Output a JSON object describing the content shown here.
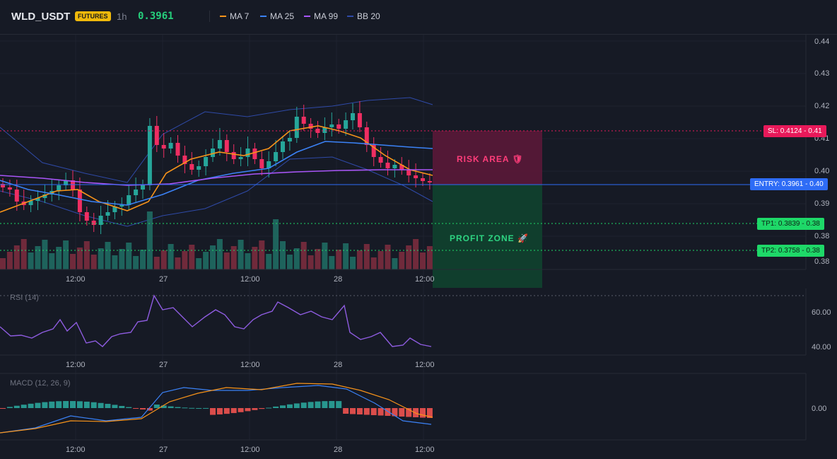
{
  "header": {
    "symbol": "WLD_USDT",
    "badge": "FUTURES",
    "timeframe": "1h",
    "price": "0.3961",
    "legend": [
      {
        "label": "MA 7",
        "color": "#f7931a"
      },
      {
        "label": "MA 25",
        "color": "#3b82f6"
      },
      {
        "label": "MA 99",
        "color": "#a855f7"
      },
      {
        "label": "BB 20",
        "color": "#2f4aa8"
      }
    ]
  },
  "price_axis": [
    "0.44",
    "0.43",
    "0.42",
    "0.41",
    "0.40",
    "0.39",
    "0.38",
    "0.38"
  ],
  "price_labels": {
    "sl": "SL: 0.4124 - 0.41",
    "entry": "ENTRY: 0.3961 - 0.40",
    "tp1": "TP1: 0.3839 - 0.38",
    "tp2": "TP2: 0.3758 - 0.38"
  },
  "zones": {
    "risk": "RISK AREA 🛡",
    "profit": "PROFIT ZONE 🚀"
  },
  "time_axis": [
    "12:00",
    "27",
    "12:00",
    "28",
    "12:00"
  ],
  "rsi": {
    "title": "RSI (14)",
    "ticks": [
      "60.00",
      "40.00"
    ]
  },
  "macd": {
    "title": "MACD (12, 26, 9)",
    "ticks": [
      "0.00"
    ]
  },
  "colors": {
    "up": "#26a69a",
    "down": "#ef2e62",
    "ma7": "#f7931a",
    "ma25": "#3b82f6",
    "ma99": "#a855f7",
    "bb": "#2f4aa8",
    "rsi": "#8e5ce0"
  }
}
